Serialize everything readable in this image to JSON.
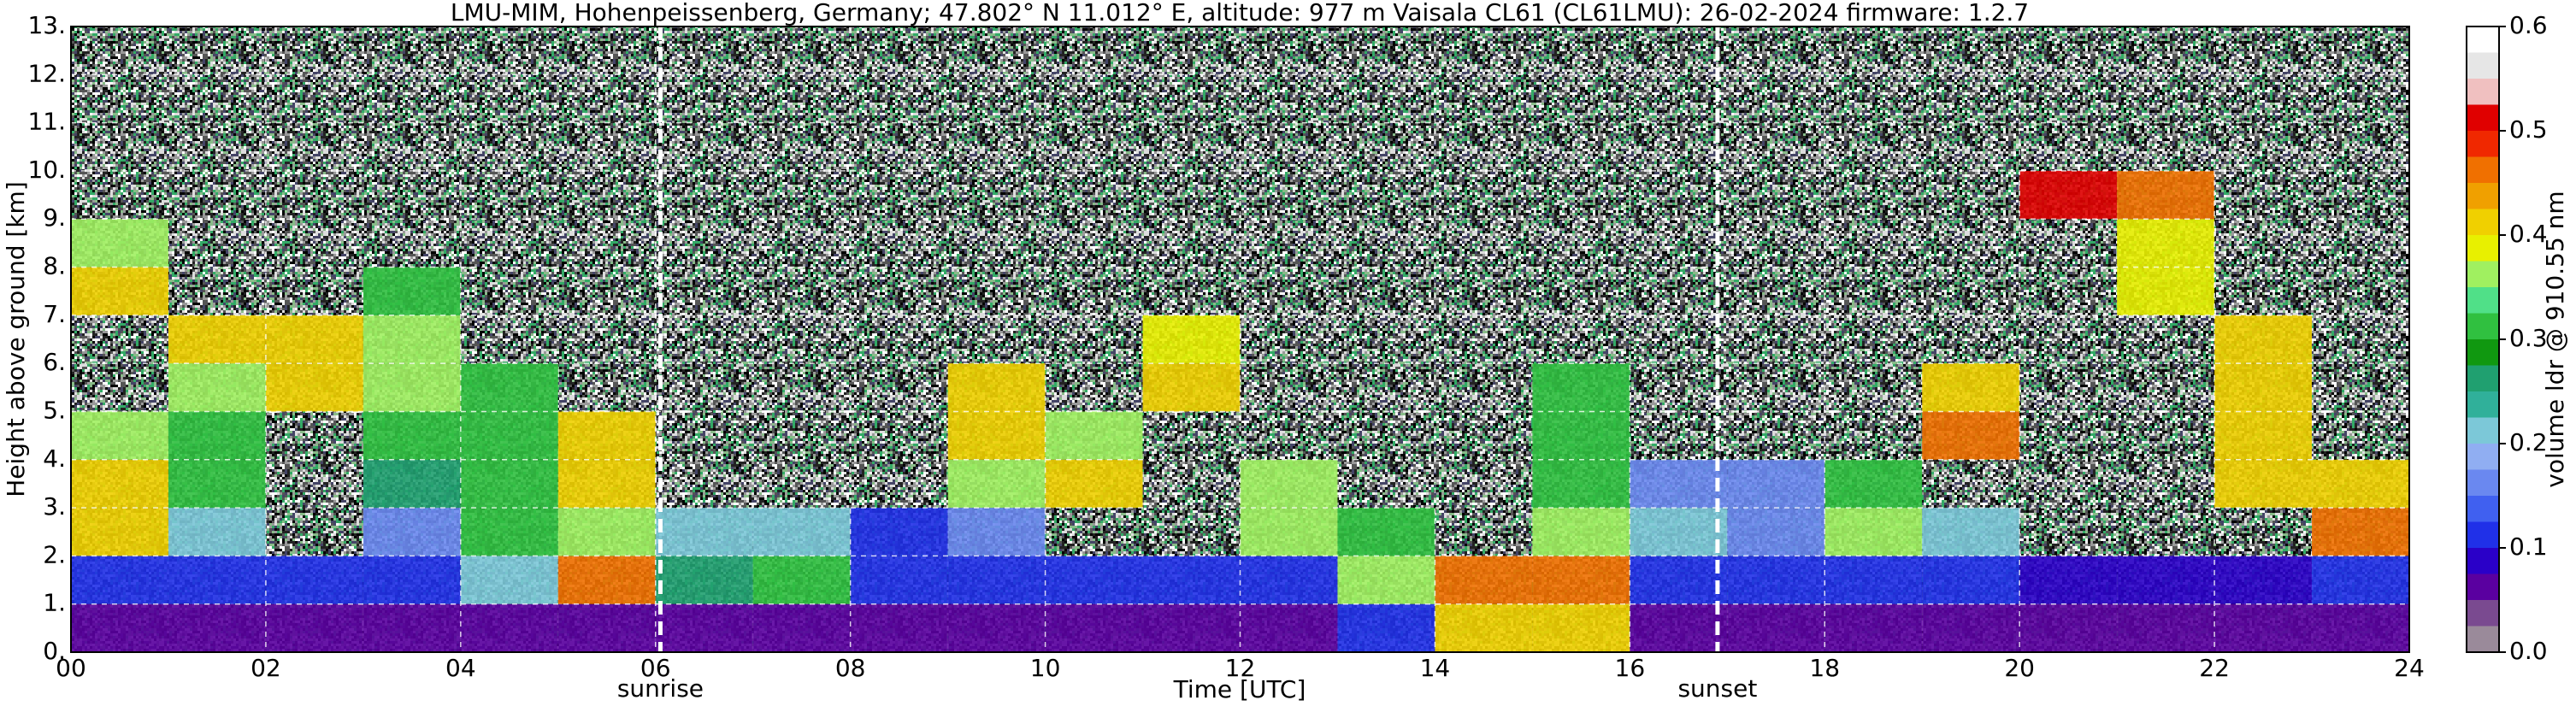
{
  "chart_data": {
    "type": "heatmap",
    "title": "LMU-MIM, Hohenpeissenberg, Germany; 47.802° N 11.012° E, altitude: 977 m    Vaisala CL61 (CL61LMU): 26-02-2024    firmware: 1.2.7",
    "x_label": "Time [UTC]",
    "y_label": "Height above ground [km]",
    "colorbar_label": "volume ldr @ 910.55 nm",
    "x_bins": [
      0,
      1,
      2,
      3,
      4,
      5,
      6,
      7,
      8,
      9,
      10,
      11,
      12,
      13,
      14,
      15,
      16,
      17,
      18,
      19,
      20,
      21,
      22,
      23,
      24
    ],
    "y_bins": [
      0,
      1,
      2,
      3,
      4,
      5,
      6,
      7,
      8,
      9,
      10,
      11,
      12,
      13
    ],
    "z": [
      [
        0.05,
        0.05,
        0.05,
        0.05,
        0.05,
        0.05,
        0.05,
        0.05,
        0.05,
        0.05,
        0.05,
        0.05,
        0.05,
        0.1,
        0.4,
        0.4,
        0.05,
        0.05,
        0.05,
        0.05,
        0.05,
        0.05,
        0.05,
        0.05
      ],
      [
        0.1,
        0.1,
        0.1,
        0.1,
        0.2,
        0.45,
        0.25,
        0.3,
        0.12,
        0.12,
        0.1,
        0.1,
        0.1,
        0.35,
        0.45,
        0.45,
        0.1,
        0.1,
        0.1,
        0.1,
        0.08,
        0.08,
        0.08,
        0.12
      ],
      [
        0.4,
        0.2,
        null,
        0.15,
        0.3,
        0.35,
        0.2,
        0.2,
        0.12,
        0.15,
        null,
        null,
        0.35,
        0.3,
        null,
        0.35,
        0.2,
        0.15,
        0.35,
        0.2,
        null,
        null,
        null,
        0.45
      ],
      [
        0.4,
        0.3,
        null,
        0.25,
        0.3,
        0.4,
        null,
        null,
        null,
        0.35,
        0.4,
        null,
        0.35,
        null,
        null,
        0.3,
        0.15,
        0.15,
        0.3,
        null,
        null,
        null,
        0.4,
        0.42
      ],
      [
        0.35,
        0.3,
        null,
        0.3,
        0.3,
        0.4,
        null,
        null,
        null,
        0.4,
        0.35,
        null,
        null,
        null,
        null,
        0.3,
        null,
        null,
        null,
        0.45,
        null,
        null,
        0.42,
        null
      ],
      [
        null,
        0.35,
        0.42,
        0.35,
        0.3,
        null,
        null,
        null,
        null,
        0.4,
        null,
        0.4,
        null,
        null,
        null,
        0.3,
        null,
        null,
        null,
        0.4,
        null,
        null,
        0.42,
        null
      ],
      [
        null,
        0.4,
        0.42,
        0.35,
        null,
        null,
        null,
        null,
        null,
        null,
        null,
        0.38,
        null,
        null,
        null,
        null,
        null,
        null,
        null,
        null,
        null,
        null,
        0.4,
        null
      ],
      [
        0.42,
        null,
        null,
        0.3,
        null,
        null,
        null,
        null,
        null,
        null,
        null,
        null,
        null,
        null,
        null,
        null,
        null,
        null,
        null,
        null,
        null,
        0.38,
        null,
        null
      ],
      [
        0.35,
        null,
        null,
        null,
        null,
        null,
        null,
        null,
        null,
        null,
        null,
        null,
        null,
        null,
        null,
        null,
        null,
        null,
        null,
        null,
        null,
        0.38,
        null,
        null
      ],
      [
        null,
        null,
        null,
        null,
        null,
        null,
        null,
        null,
        null,
        null,
        null,
        null,
        null,
        null,
        null,
        null,
        null,
        null,
        null,
        null,
        0.5,
        0.45,
        null,
        null
      ],
      [
        null,
        null,
        null,
        null,
        null,
        null,
        null,
        null,
        null,
        null,
        null,
        null,
        null,
        null,
        null,
        null,
        null,
        null,
        null,
        null,
        null,
        null,
        null,
        null
      ],
      [
        null,
        null,
        null,
        null,
        null,
        null,
        null,
        null,
        null,
        null,
        null,
        null,
        null,
        null,
        null,
        null,
        null,
        null,
        null,
        null,
        null,
        null,
        null,
        null
      ],
      [
        null,
        null,
        null,
        null,
        null,
        null,
        null,
        null,
        null,
        null,
        null,
        null,
        null,
        null,
        null,
        null,
        null,
        null,
        null,
        null,
        null,
        null,
        null,
        null
      ]
    ],
    "xlim": [
      0,
      24
    ],
    "ylim": [
      0,
      13
    ],
    "xticks": [
      {
        "value": 0,
        "label": "00"
      },
      {
        "value": 2,
        "label": "02"
      },
      {
        "value": 4,
        "label": "04"
      },
      {
        "value": 6,
        "label": "06"
      },
      {
        "value": 8,
        "label": "08"
      },
      10,
      12,
      14,
      16,
      18,
      20,
      22,
      24
    ],
    "yticks": [
      {
        "value": 0,
        "label": "0."
      },
      {
        "value": 1,
        "label": "1."
      },
      {
        "value": 2,
        "label": "2."
      },
      {
        "value": 3,
        "label": "3."
      },
      {
        "value": 4,
        "label": "4."
      },
      {
        "value": 5,
        "label": "5."
      },
      {
        "value": 6,
        "label": "6."
      },
      {
        "value": 7,
        "label": "7."
      },
      {
        "value": 8,
        "label": "8."
      },
      {
        "value": 9,
        "label": "9."
      },
      {
        "value": 10,
        "label": "10."
      },
      {
        "value": 11,
        "label": "11."
      },
      {
        "value": 12,
        "label": "12."
      },
      {
        "value": 13,
        "label": "13."
      }
    ],
    "clim": [
      0,
      0.6
    ],
    "cticks": [
      {
        "value": 0,
        "label": "0.0"
      },
      0.1,
      0.2,
      0.3,
      0.4,
      0.5,
      0.6
    ],
    "colorscale": [
      "#9a8a9a",
      "#7a4a90",
      "#5a00a0",
      "#2a00c8",
      "#2030e8",
      "#4060f0",
      "#6a88f0",
      "#90aef2",
      "#7cc8d8",
      "#30b09a",
      "#20a070",
      "#109810",
      "#30c040",
      "#50e088",
      "#a0f060",
      "#e8f000",
      "#f0d000",
      "#f0a000",
      "#f07000",
      "#f02800",
      "#e00000",
      "#f0c0c0",
      "#e6e6e6",
      "#ffffff"
    ],
    "grid": true,
    "annotations": [
      {
        "text": "sunrise",
        "x": 6.05
      },
      {
        "text": "sunset",
        "x": 16.9
      }
    ]
  }
}
